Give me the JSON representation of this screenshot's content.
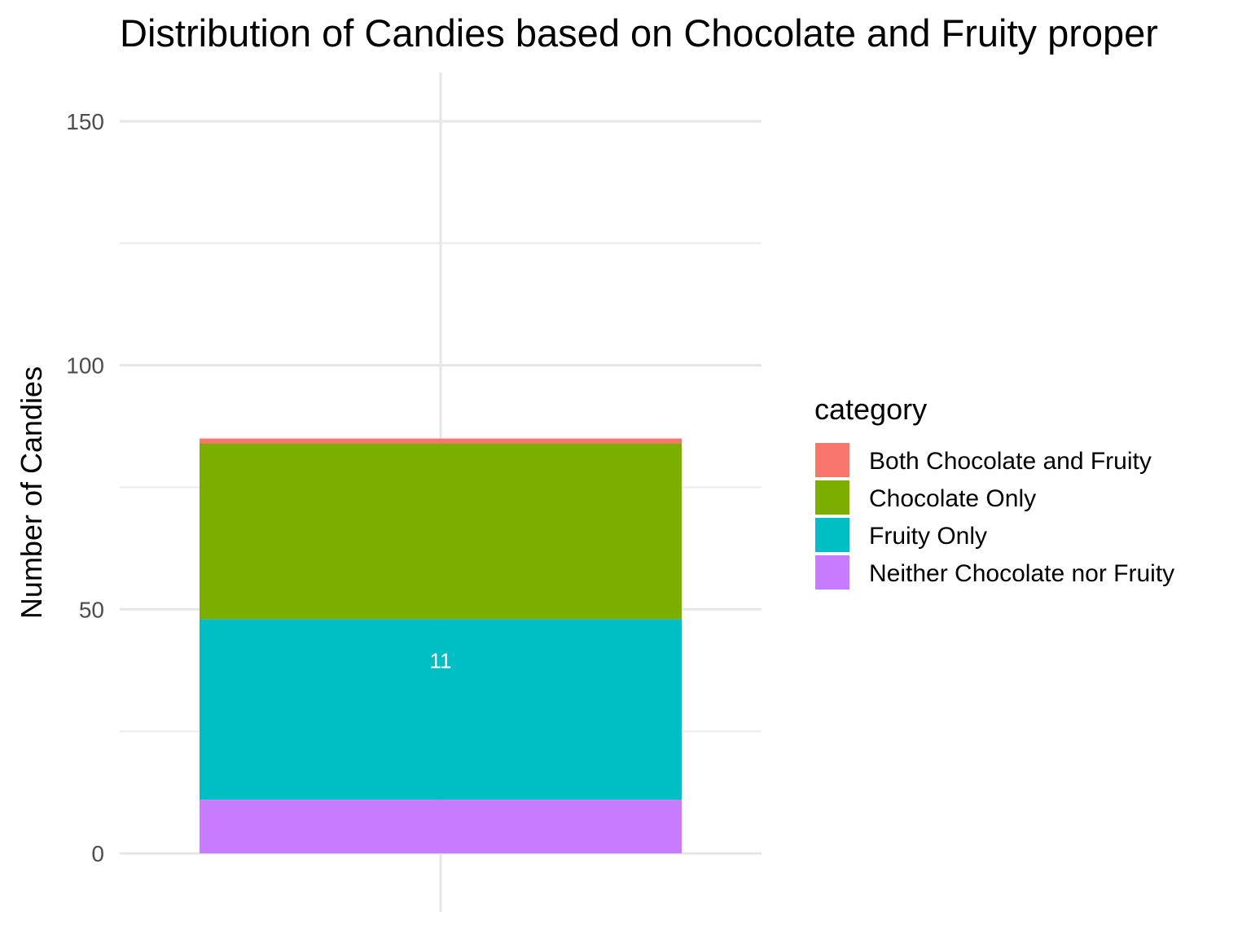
{
  "chart_data": {
    "type": "bar",
    "stacked": true,
    "title": "Distribution of Candies based on Chocolate and Fruity proper",
    "xlabel": "",
    "ylabel": "Number of Candies",
    "ylim": [
      -12,
      160
    ],
    "y_ticks": [
      0,
      50,
      100,
      150
    ],
    "grid": true,
    "legend_position": "right",
    "legend_title": "category",
    "categories": [
      ""
    ],
    "series": [
      {
        "name": "Neither Chocolate nor Fruity",
        "values": [
          11
        ],
        "color": "#C77CFF"
      },
      {
        "name": "Fruity Only",
        "values": [
          37
        ],
        "color": "#00BFC4"
      },
      {
        "name": "Chocolate Only",
        "values": [
          36
        ],
        "color": "#7CAE00"
      },
      {
        "name": "Both Chocolate and Fruity",
        "values": [
          1
        ],
        "color": "#F8766D"
      }
    ],
    "legend_order": [
      "Both Chocolate and Fruity",
      "Chocolate Only",
      "Fruity Only",
      "Neither Chocolate nor Fruity"
    ],
    "annotations": [
      {
        "text": "11",
        "x": "",
        "y": 39.5,
        "color": "#ffffff"
      }
    ]
  }
}
